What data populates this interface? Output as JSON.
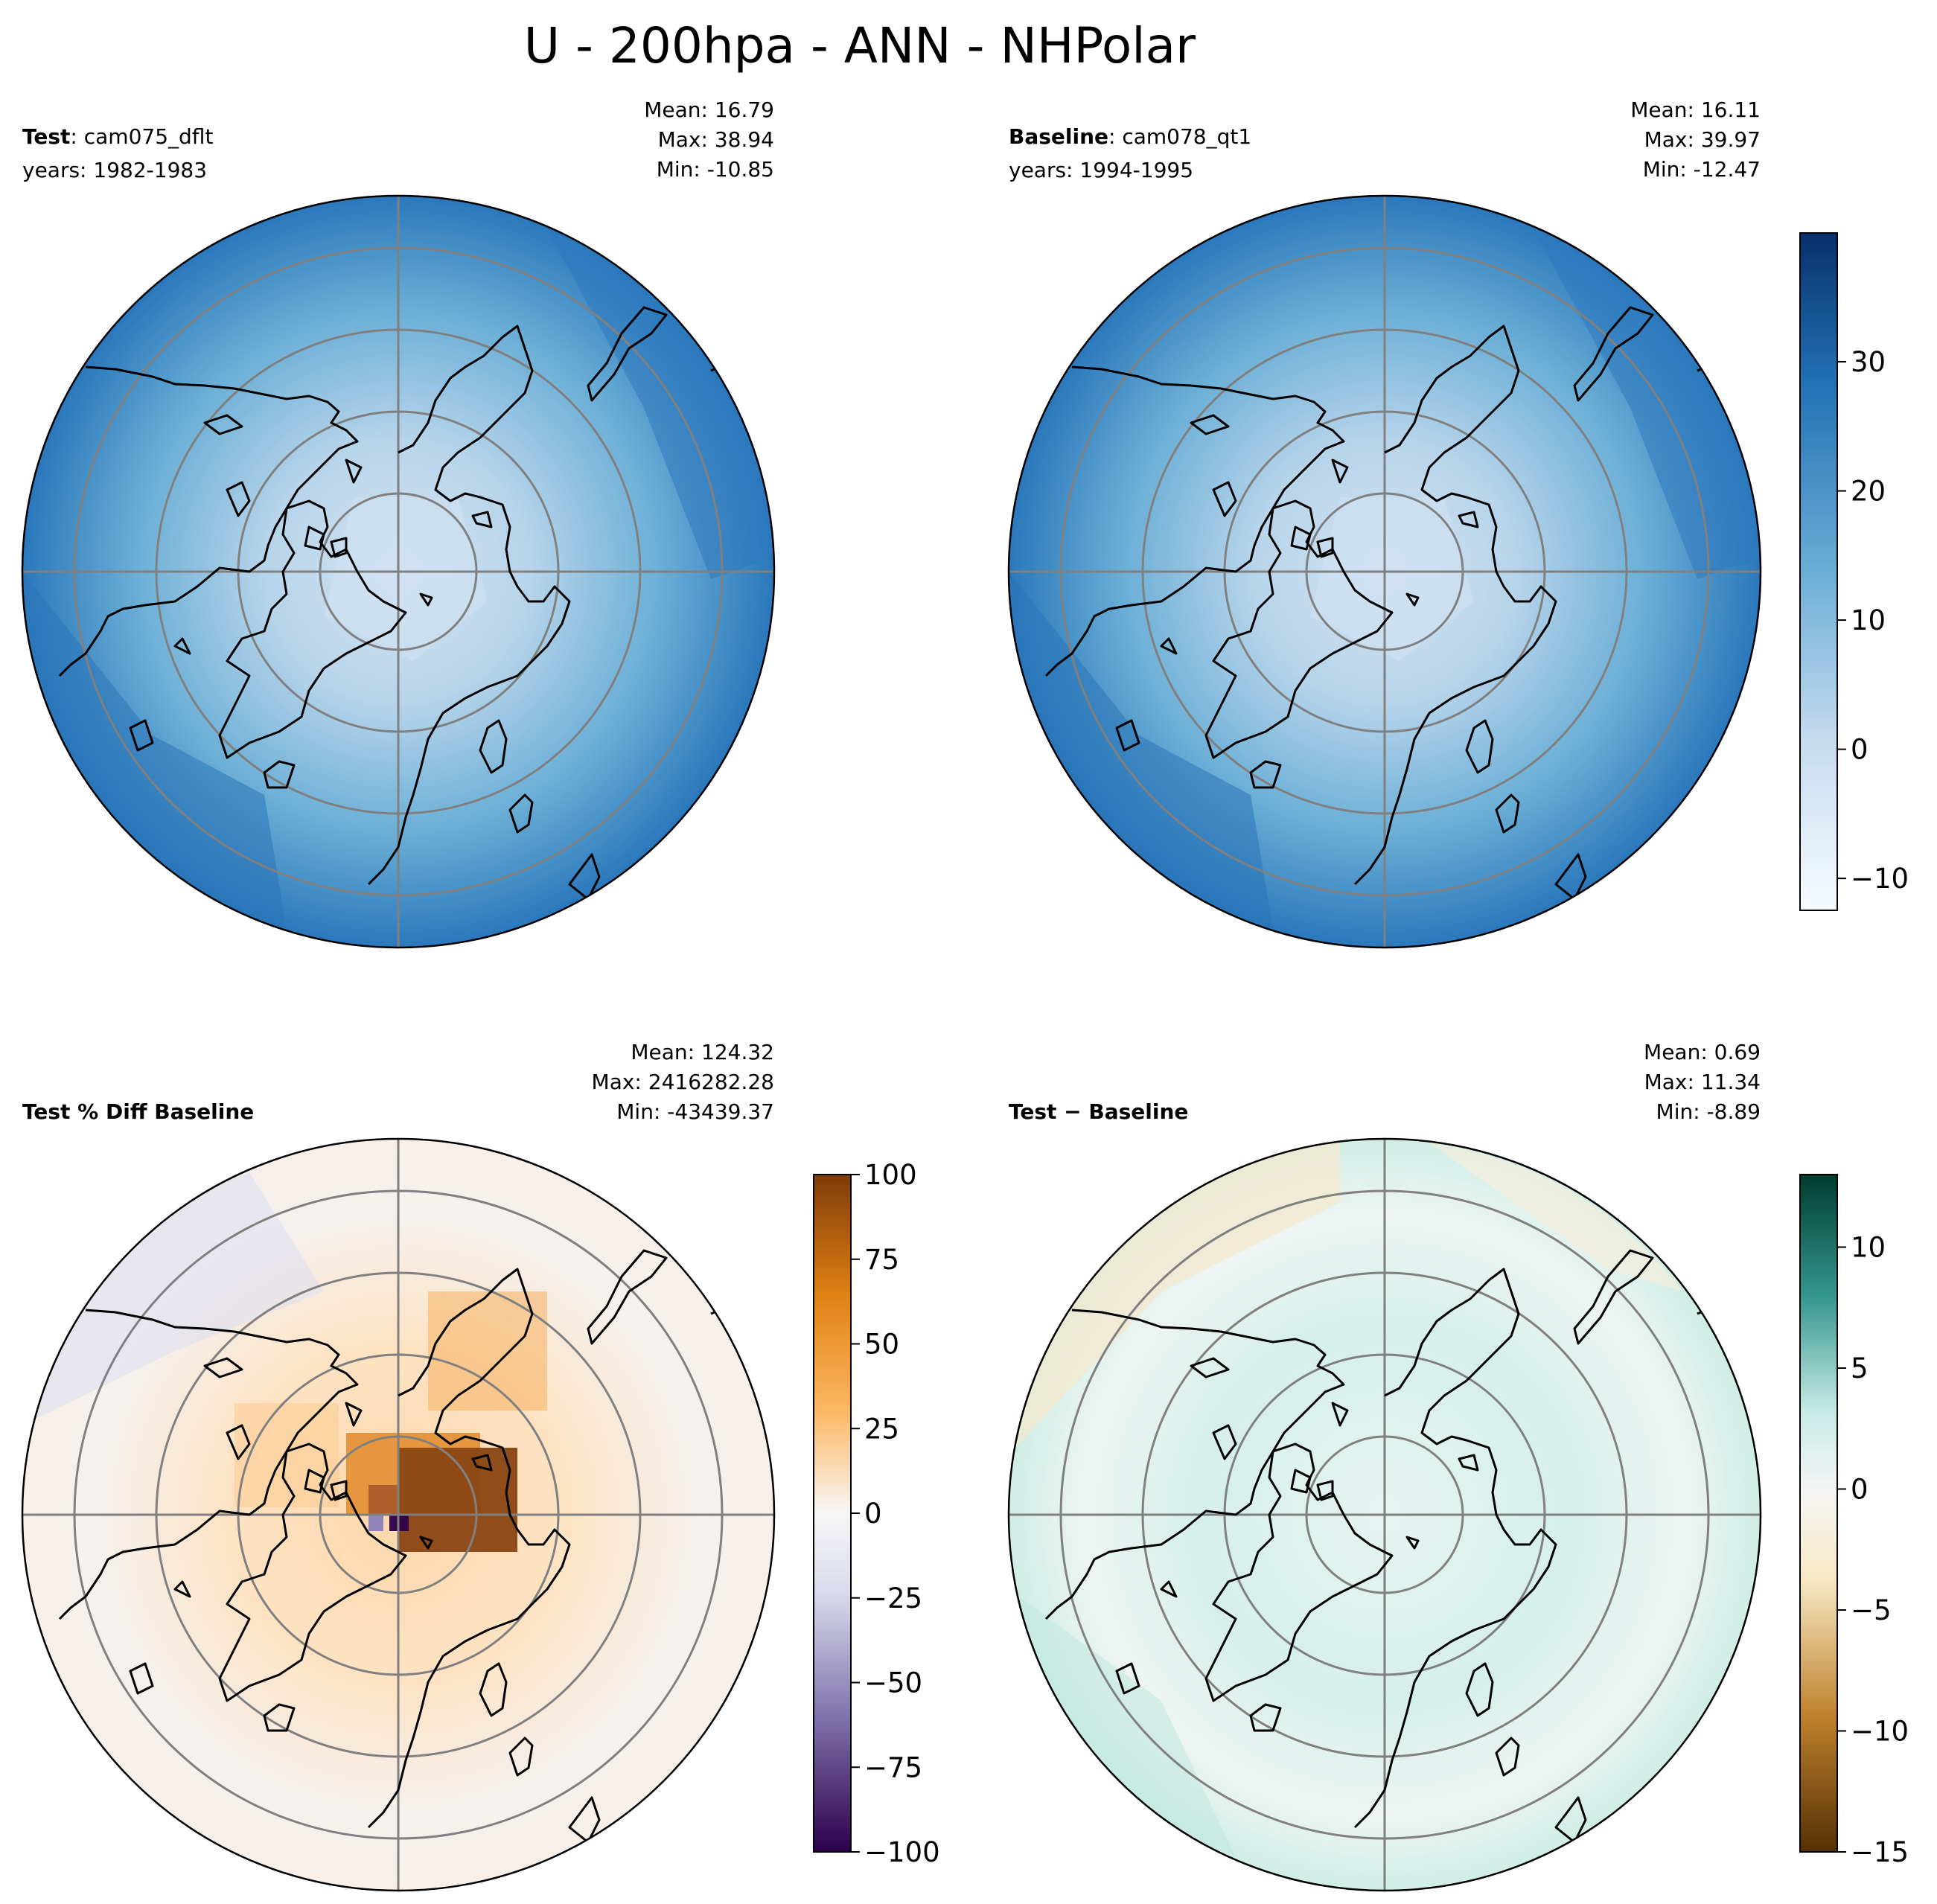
{
  "figure_title": "U - 200hpa - ANN - NHPolar",
  "panels": [
    {
      "key": "test",
      "label_bold": "Test",
      "label_rest": ": cam075_dflt",
      "label_line2": "years: 1982-1983",
      "stats": [
        "Mean: 16.79",
        "Max: 38.94",
        "Min: -10.85"
      ],
      "colormap": "Blues",
      "value_field": "mean zonal wind 200hPa, strongest at southern edge and near Pacific jet, weakest near pole"
    },
    {
      "key": "baseline",
      "label_bold": "Baseline",
      "label_rest": ": cam078_qt1",
      "label_line2": "years: 1994-1995",
      "stats": [
        "Mean: 16.11",
        "Max: 39.97",
        "Min: -12.47"
      ],
      "colormap": "Blues"
    },
    {
      "key": "pctdiff",
      "label_bold": "Test % Diff Baseline",
      "label_rest": "",
      "label_line2": "",
      "stats": [
        "Mean: 124.32",
        "Max: 2416282.28",
        "Min: -43439.37"
      ],
      "colormap": "PuOr_r"
    },
    {
      "key": "diff",
      "label_bold": "Test",
      "label_rest": " − Baseline",
      "label_line2": "",
      "label_rest_bold": true,
      "stats": [
        "Mean:  0.69",
        "Max: 11.34",
        "Min: -8.89"
      ],
      "colormap": "BrBG"
    }
  ],
  "colorbars": [
    {
      "key": "abs",
      "vmin": -12.47,
      "vmax": 39.97,
      "ticks": [
        "30",
        "20",
        "10",
        "0",
        "−10"
      ],
      "tick_values": [
        30,
        20,
        10,
        0,
        -10
      ],
      "colors": [
        "#f7fbff",
        "#c6dbef",
        "#6baed6",
        "#2171b5",
        "#08306b"
      ]
    },
    {
      "key": "pct",
      "vmin": -100,
      "vmax": 100,
      "ticks": [
        "100",
        "75",
        "50",
        "25",
        "0",
        "−25",
        "−50",
        "−75",
        "−100"
      ],
      "tick_values": [
        100,
        75,
        50,
        25,
        0,
        -25,
        -50,
        -75,
        -100
      ],
      "colors": [
        "#2d004b",
        "#8073ac",
        "#d8daeb",
        "#f7f7f7",
        "#fdb863",
        "#e08214",
        "#7f3b08"
      ]
    },
    {
      "key": "diff",
      "vmin": -15,
      "vmax": 13,
      "ticks": [
        "10",
        "5",
        "0",
        "−5",
        "−10",
        "−15"
      ],
      "tick_values": [
        10,
        5,
        0,
        -5,
        -10,
        -15
      ],
      "colors": [
        "#543005",
        "#bf812d",
        "#f6e8c3",
        "#f5f5f5",
        "#c7eae5",
        "#35978f",
        "#003c30"
      ]
    }
  ]
}
